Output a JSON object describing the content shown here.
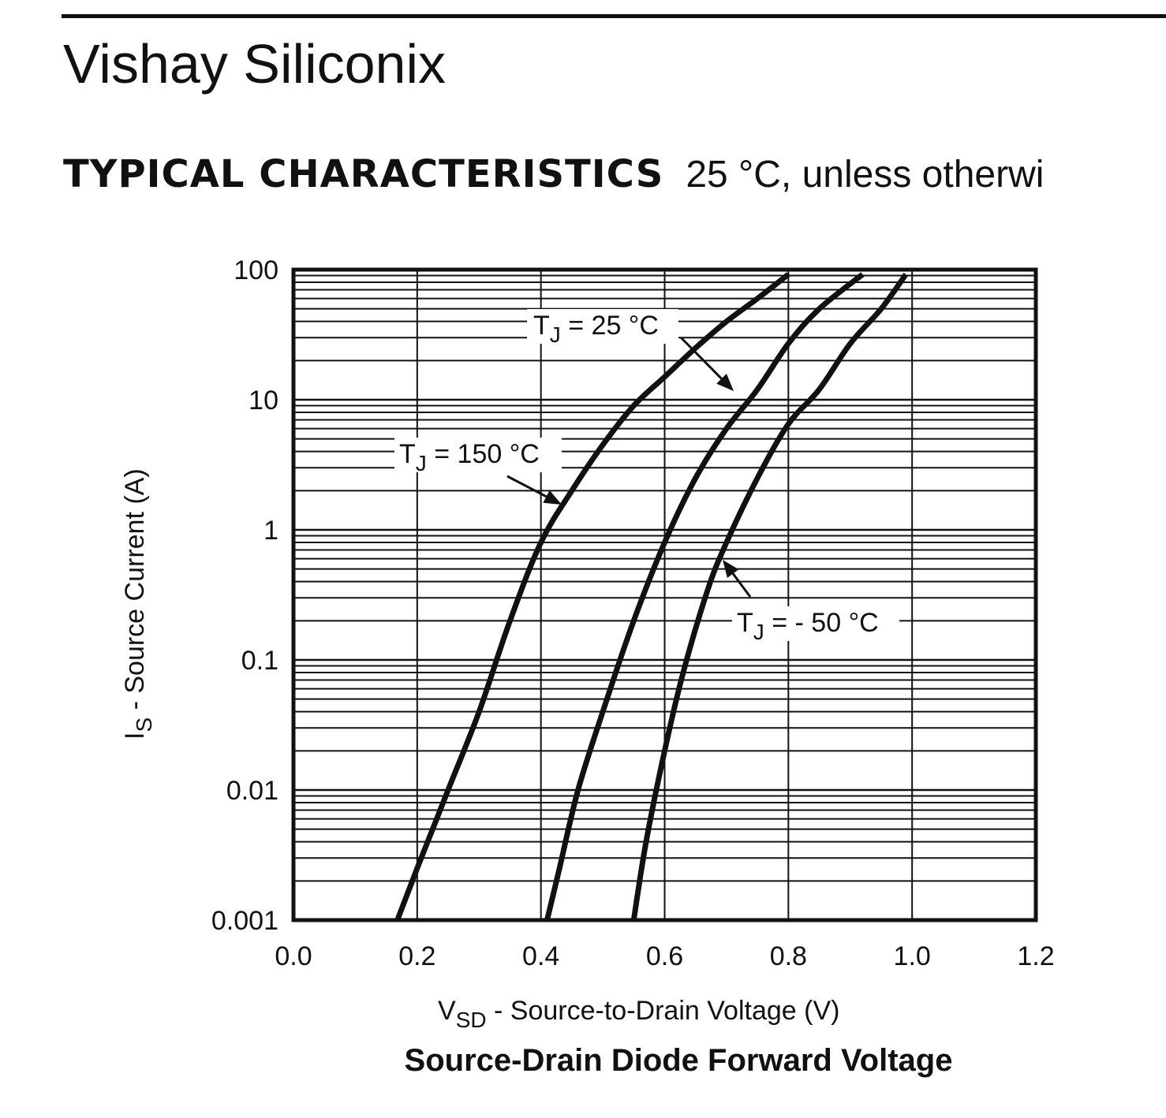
{
  "header": {
    "company": "Vishay Siliconix",
    "section_title": "TYPICAL CHARACTERISTICS",
    "section_subtitle": "25 °C, unless otherwi"
  },
  "colors": {
    "ink": "#111111",
    "background": "#ffffff"
  },
  "chart_data": {
    "type": "line",
    "title": "Source-Drain Diode Forward Voltage",
    "xlabel": {
      "main": "V",
      "sub": "SD",
      "rest": " - Source-to-Drain Voltage (V)"
    },
    "ylabel": {
      "main": "I",
      "sub": "S",
      "rest": " - Source Current (A)"
    },
    "xlim": [
      0.0,
      1.2
    ],
    "ylim": [
      0.001,
      100
    ],
    "yscale": "log",
    "grid": true,
    "x_ticks": [
      "0.0",
      "0.2",
      "0.4",
      "0.6",
      "0.8",
      "1.0",
      "1.2"
    ],
    "y_ticks": [
      "0.001",
      "0.01",
      "0.1",
      "1",
      "10",
      "100"
    ],
    "series": [
      {
        "name": "TJ = 150 °C",
        "points": [
          [
            0.168,
            0.001
          ],
          [
            0.2,
            0.0025
          ],
          [
            0.25,
            0.01
          ],
          [
            0.3,
            0.04
          ],
          [
            0.35,
            0.2
          ],
          [
            0.4,
            0.8
          ],
          [
            0.45,
            2.0
          ],
          [
            0.5,
            4.5
          ],
          [
            0.55,
            9.0
          ],
          [
            0.6,
            15
          ],
          [
            0.65,
            25
          ],
          [
            0.7,
            40
          ],
          [
            0.75,
            60
          ],
          [
            0.8,
            92
          ]
        ]
      },
      {
        "name": "TJ = 25 °C",
        "points": [
          [
            0.41,
            0.001
          ],
          [
            0.43,
            0.0025
          ],
          [
            0.46,
            0.01
          ],
          [
            0.5,
            0.04
          ],
          [
            0.55,
            0.2
          ],
          [
            0.6,
            0.8
          ],
          [
            0.65,
            2.5
          ],
          [
            0.7,
            6.0
          ],
          [
            0.75,
            12
          ],
          [
            0.8,
            27
          ],
          [
            0.85,
            50
          ],
          [
            0.92,
            92
          ]
        ]
      },
      {
        "name": "TJ = - 50 °C",
        "points": [
          [
            0.55,
            0.001
          ],
          [
            0.57,
            0.004
          ],
          [
            0.6,
            0.02
          ],
          [
            0.63,
            0.08
          ],
          [
            0.67,
            0.35
          ],
          [
            0.7,
            0.8
          ],
          [
            0.75,
            2.5
          ],
          [
            0.8,
            6.5
          ],
          [
            0.85,
            12
          ],
          [
            0.9,
            27
          ],
          [
            0.95,
            50
          ],
          [
            0.99,
            92
          ]
        ]
      }
    ],
    "annotations": [
      {
        "main": "T",
        "sub": "J",
        "rest": " = 25 °C"
      },
      {
        "main": "T",
        "sub": "J",
        "rest": " = 150 °C"
      },
      {
        "main": "T",
        "sub": "J",
        "rest": " = - 50 °C"
      }
    ]
  }
}
